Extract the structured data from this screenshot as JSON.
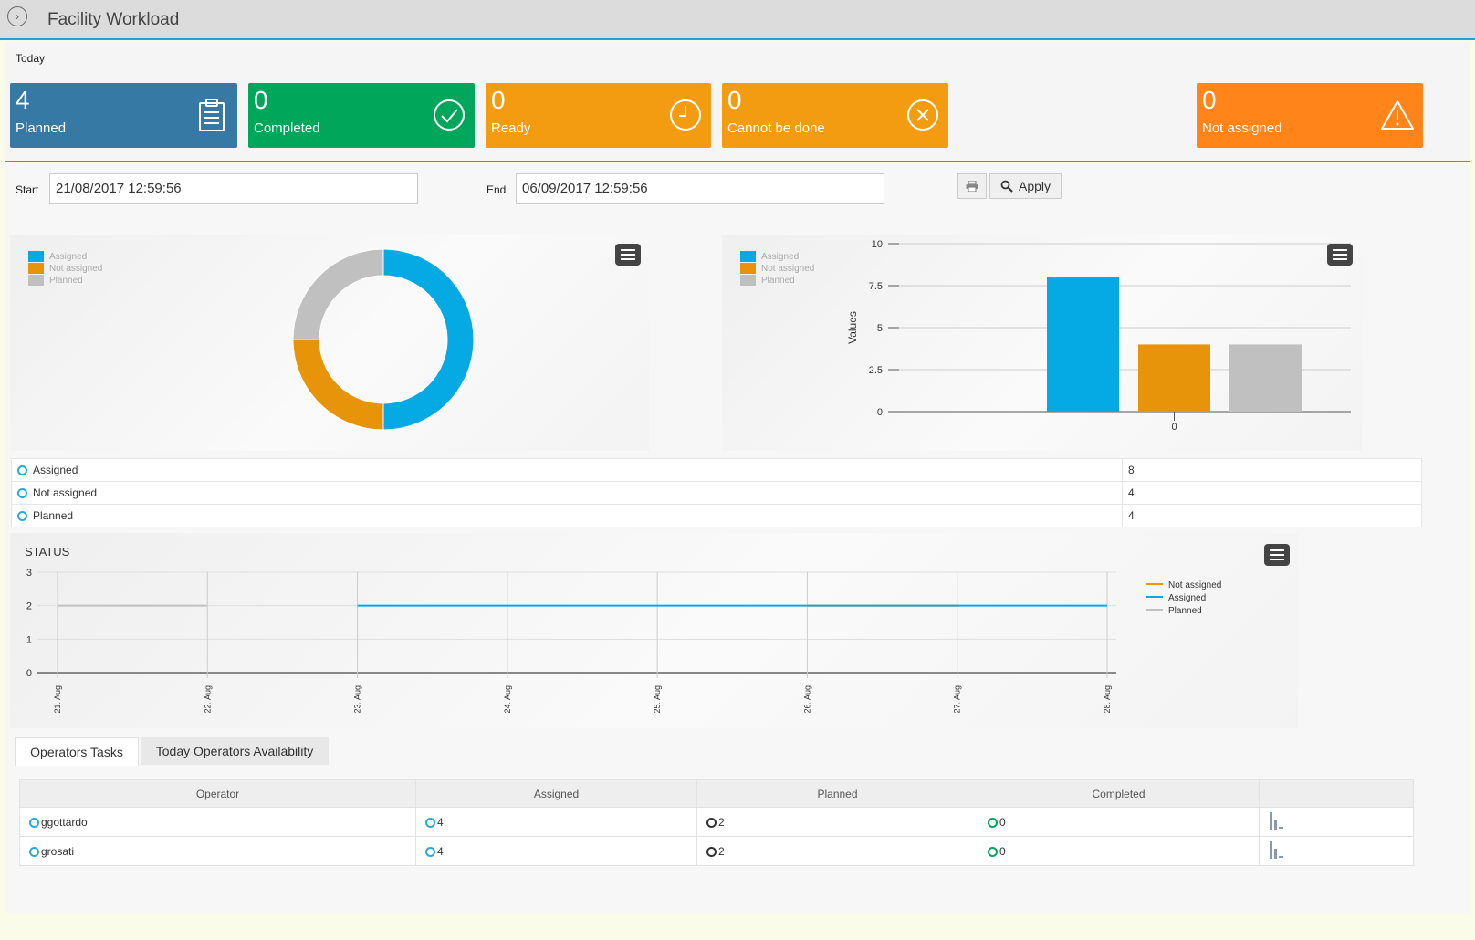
{
  "header": {
    "title": "Facility Workload"
  },
  "today": {
    "label": "Today",
    "kpis": [
      {
        "value": "4",
        "label": "Planned",
        "color": "#3579a4",
        "icon": "clipboard-icon"
      },
      {
        "value": "0",
        "label": "Completed",
        "color": "#00a65a",
        "icon": "check-circle-icon"
      },
      {
        "value": "0",
        "label": "Ready",
        "color": "#f39c12",
        "icon": "clock-icon"
      },
      {
        "value": "0",
        "label": "Cannot be done",
        "color": "#f39c12",
        "icon": "x-circle-icon"
      },
      {
        "value": "0",
        "label": "Not assigned",
        "color": "#ff851b",
        "icon": "warning-triangle-icon"
      }
    ]
  },
  "filters": {
    "start_label": "Start",
    "start_value": "21/08/2017 12:59:56",
    "end_label": "End",
    "end_value": "06/09/2017 12:59:56",
    "print_icon": "printer-icon",
    "apply_label": "Apply",
    "apply_icon": "search-icon"
  },
  "colors": {
    "assigned": "#05a9e3",
    "not_assigned": "#e8940a",
    "planned": "#c0c0c0"
  },
  "summary": {
    "rows": [
      {
        "label": "Assigned",
        "value": "8"
      },
      {
        "label": "Not assigned",
        "value": "4"
      },
      {
        "label": "Planned",
        "value": "4"
      }
    ]
  },
  "chart_data": [
    {
      "type": "pie",
      "legend": [
        "Assigned",
        "Not assigned",
        "Planned"
      ],
      "legend_position": "top-left",
      "slices": [
        {
          "name": "Assigned",
          "value": 8
        },
        {
          "name": "Not assigned",
          "value": 4
        },
        {
          "name": "Planned",
          "value": 4
        }
      ]
    },
    {
      "type": "bar",
      "categories": [
        "0"
      ],
      "ylabel": "Values",
      "ylim": [
        0,
        10
      ],
      "yticks": [
        "0",
        "2.5",
        "5",
        "7.5",
        "10"
      ],
      "legend_position": "top-left",
      "series": [
        {
          "name": "Assigned",
          "values": [
            8
          ]
        },
        {
          "name": "Not assigned",
          "values": [
            4
          ]
        },
        {
          "name": "Planned",
          "values": [
            4
          ]
        }
      ]
    },
    {
      "type": "line",
      "title": "STATUS",
      "x": [
        "21. Aug",
        "22. Aug",
        "23. Aug",
        "24. Aug",
        "25. Aug",
        "26. Aug",
        "27. Aug",
        "28. Aug"
      ],
      "ylim": [
        0,
        3
      ],
      "yticks": [
        "0",
        "1",
        "2",
        "3"
      ],
      "legend_position": "right",
      "series": [
        {
          "name": "Not assigned",
          "values": [
            null,
            null,
            null,
            null,
            null,
            2,
            2,
            null
          ]
        },
        {
          "name": "Assigned",
          "values": [
            null,
            null,
            2,
            2,
            2,
            2,
            2,
            2
          ]
        },
        {
          "name": "Planned",
          "values": [
            2,
            2,
            null,
            null,
            null,
            null,
            null,
            null
          ]
        }
      ]
    }
  ],
  "tabs": [
    {
      "label": "Operators Tasks",
      "active": true
    },
    {
      "label": "Today Operators Availability",
      "active": false
    }
  ],
  "operators": {
    "columns": [
      "Operator",
      "Assigned",
      "Planned",
      "Completed",
      ""
    ],
    "rows": [
      {
        "name": "ggottardo",
        "assigned": "4",
        "planned": "2",
        "completed": "0"
      },
      {
        "name": "grosati",
        "assigned": "4",
        "planned": "2",
        "completed": "0"
      }
    ],
    "row_icon": "bar-chart-icon"
  }
}
